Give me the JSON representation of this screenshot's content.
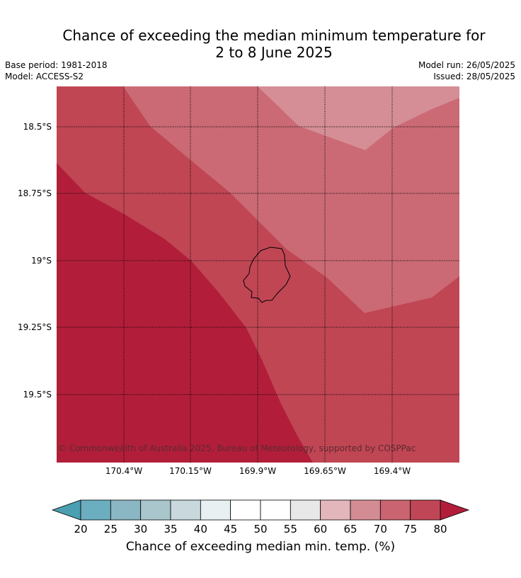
{
  "header": {
    "title_line1": "Chance of exceeding the median minimum temperature for",
    "title_line2": "2 to 8 June 2025",
    "base_period": "Base period: 1981-2018",
    "model": "Model: ACCESS-S2",
    "model_run": "Model run: 26/05/2025",
    "issued": "Issued: 28/05/2025"
  },
  "map": {
    "copyright": "© Commonwealth of Australia 2025, Bureau of Meteorology, supported by COSPPac",
    "lat_labels": [
      "18.5°S",
      "18.75°S",
      "19°S",
      "19.25°S",
      "19.5°S"
    ],
    "lon_labels": [
      "170.4°W",
      "170.15°W",
      "169.9°W",
      "169.65°W",
      "169.4°W"
    ],
    "band_colors": {
      "p80plus": "#b21e3a",
      "p75_80": "#c04654",
      "p70_75": "#cb6a75",
      "p65_70": "#d58e95"
    }
  },
  "colorbar": {
    "label": "Chance of exceeding median min. temp. (%)",
    "ticks": [
      "20",
      "25",
      "30",
      "35",
      "40",
      "45",
      "50",
      "55",
      "60",
      "65",
      "70",
      "75",
      "80"
    ],
    "under_color": "#4a9fb0",
    "over_color": "#b21e3a",
    "colors": [
      "#6aaebf",
      "#8bb6c3",
      "#a8c6cb",
      "#c8d8dc",
      "#e8f0f2",
      "#ffffff",
      "#ffffff",
      "#e8e8e8",
      "#e2b6ba",
      "#d48c94",
      "#ca6470",
      "#bf4656"
    ]
  }
}
